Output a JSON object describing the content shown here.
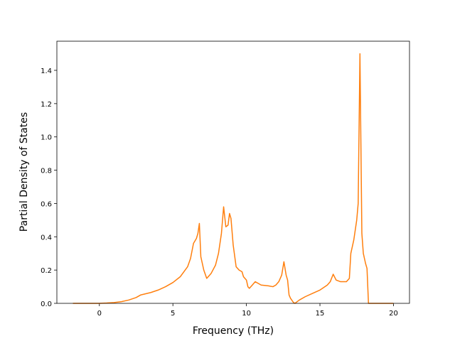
{
  "chart_data": {
    "type": "line",
    "x_label": "Frequency (THz)",
    "y_label": "Partial Density of States",
    "x": [
      -1.8,
      0,
      0.5,
      1,
      1.5,
      2,
      2.5,
      2.8,
      3.5,
      4,
      4.5,
      5,
      5.5,
      6,
      6.2,
      6.4,
      6.6,
      6.7,
      6.8,
      6.9,
      7.1,
      7.3,
      7.6,
      7.9,
      8.1,
      8.3,
      8.45,
      8.6,
      8.75,
      8.85,
      8.95,
      9.1,
      9.3,
      9.5,
      9.7,
      9.8,
      10,
      10.1,
      10.2,
      10.4,
      10.6,
      10.8,
      11,
      11.5,
      11.8,
      12,
      12.2,
      12.4,
      12.55,
      12.7,
      12.8,
      12.9,
      13,
      13.2,
      13.3,
      13.6,
      14,
      14.5,
      15,
      15.5,
      15.7,
      15.9,
      16.1,
      16.4,
      16.8,
      17,
      17.1,
      17.3,
      17.5,
      17.6,
      17.72,
      17.85,
      17.95,
      18.1,
      18.2,
      18.3,
      18.5,
      20
    ],
    "values": [
      0,
      0,
      0.002,
      0.005,
      0.01,
      0.02,
      0.035,
      0.05,
      0.065,
      0.08,
      0.1,
      0.125,
      0.16,
      0.22,
      0.27,
      0.36,
      0.39,
      0.42,
      0.48,
      0.28,
      0.2,
      0.15,
      0.18,
      0.23,
      0.3,
      0.42,
      0.58,
      0.46,
      0.47,
      0.54,
      0.51,
      0.35,
      0.22,
      0.2,
      0.19,
      0.16,
      0.14,
      0.1,
      0.09,
      0.11,
      0.13,
      0.12,
      0.11,
      0.105,
      0.1,
      0.11,
      0.13,
      0.17,
      0.25,
      0.17,
      0.14,
      0.05,
      0.03,
      0.005,
      0,
      0.02,
      0.04,
      0.06,
      0.08,
      0.11,
      0.13,
      0.175,
      0.14,
      0.13,
      0.13,
      0.15,
      0.3,
      0.38,
      0.5,
      0.6,
      1.5,
      0.42,
      0.3,
      0.24,
      0.21,
      0,
      0,
      0
    ],
    "color": "#ff7f0e",
    "xlim": [
      -2.89,
      21.09
    ],
    "xticks": [
      0,
      5,
      10,
      15,
      20
    ],
    "ylim": [
      0,
      1.575
    ],
    "yticks": [
      {
        "value": 0,
        "label": "0.0"
      },
      {
        "value": 0.2,
        "label": "0.2"
      },
      {
        "value": 0.4,
        "label": "0.4"
      },
      {
        "value": 0.6,
        "label": "0.6"
      },
      {
        "value": 0.8,
        "label": "0.8"
      },
      {
        "value": 1.0,
        "label": "1.0"
      },
      {
        "value": 1.2,
        "label": "1.2"
      },
      {
        "value": 1.4,
        "label": "1.4"
      }
    ],
    "grid": false
  }
}
